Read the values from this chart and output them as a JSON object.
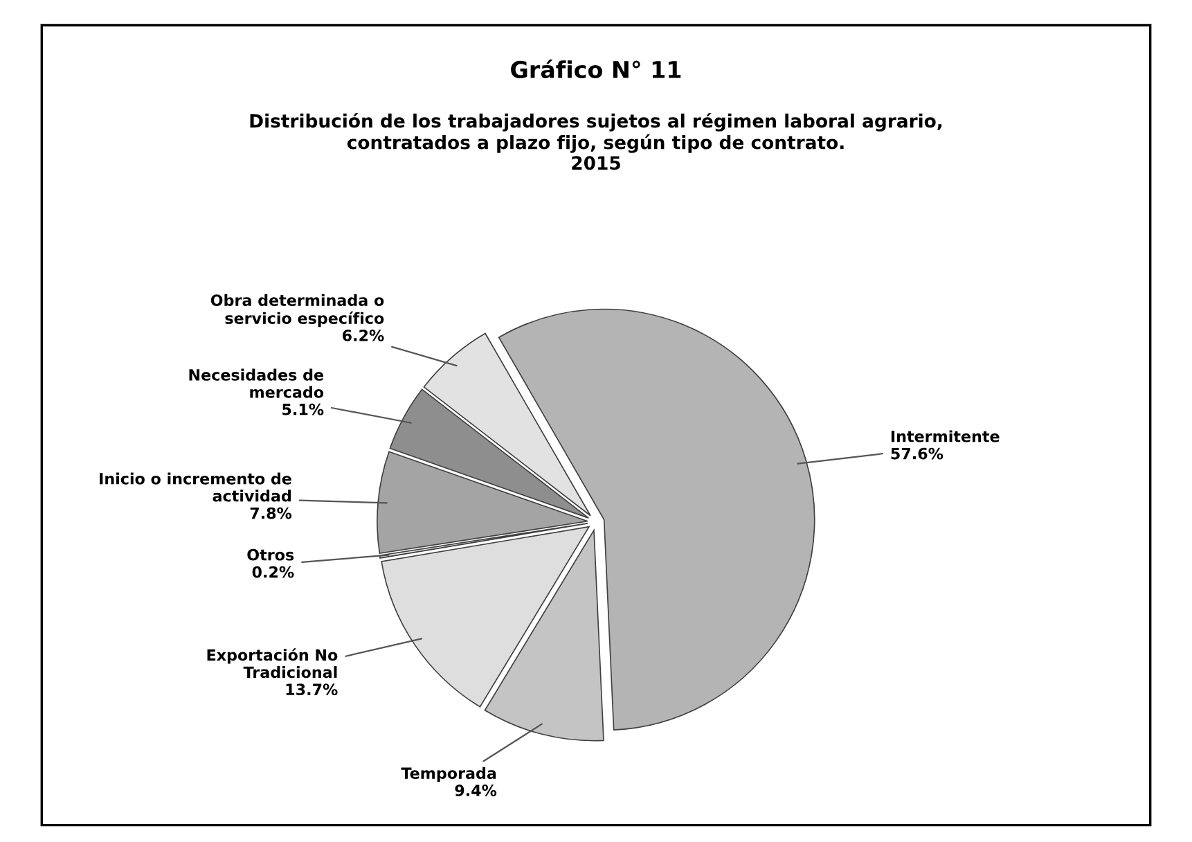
{
  "chart_data": {
    "type": "pie",
    "title": "Gráfico N° 11",
    "subtitle": "Distribución de los trabajadores sujetos al régimen laboral agrario,\ncontratados a plazo fijo, según tipo de contrato.\n2015",
    "categories": [
      "Intermitente",
      "Temporada",
      "Exportación No\nTradicional",
      "Otros",
      "Inicio o incremento de\nactividad",
      "Necesidades de\nmercado",
      "Obra determinada o\nservicio específico"
    ],
    "values": [
      57.6,
      9.4,
      13.7,
      0.2,
      7.8,
      5.1,
      6.2
    ],
    "value_labels": [
      "57.6%",
      "9.4%",
      "13.7%",
      "0.2%",
      "7.8%",
      "5.1%",
      "6.2%"
    ],
    "colors": [
      "#b4b4b4",
      "#c4c4c4",
      "#dedede",
      "#e6e6e6",
      "#a4a4a4",
      "#8e8e8e",
      "#e2e2e2"
    ]
  }
}
